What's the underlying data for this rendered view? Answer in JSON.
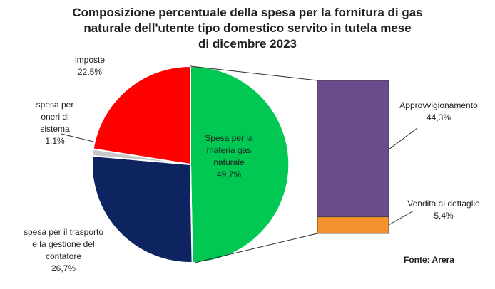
{
  "title_lines": [
    "Composizione percentuale della spesa per la fornitura di gas",
    "naturale dell'utente tipo domestico servito in tutela mese",
    "di dicembre 2023"
  ],
  "source": "Fonte: Arera",
  "chart_data": [
    {
      "type": "pie",
      "slices": [
        {
          "label_lines": [
            "Spesa per la",
            "materia gas",
            "naturale"
          ],
          "value": 49.7,
          "value_label": "49,7%",
          "color": "#00c853"
        },
        {
          "label_lines": [
            "spesa per il trasporto",
            "e la gestione del",
            "contatore"
          ],
          "value": 26.7,
          "value_label": "26,7%",
          "color": "#0d2460"
        },
        {
          "label_lines": [
            "spesa per",
            "oneri di",
            "sistema"
          ],
          "value": 1.1,
          "value_label": "1,1%",
          "color": "#c8c8c8"
        },
        {
          "label_lines": [
            "imposte"
          ],
          "value": 22.5,
          "value_label": "22,5%",
          "color": "#ff0000"
        }
      ]
    },
    {
      "type": "bar",
      "stacked": true,
      "series": [
        {
          "name": "Vendita al dettaglio",
          "value": 5.4,
          "value_label": "5,4%",
          "color": "#f5922f"
        },
        {
          "name": "Approvvigionamento",
          "value": 44.3,
          "value_label": "44,3%",
          "color": "#6a4c8c"
        }
      ]
    }
  ]
}
